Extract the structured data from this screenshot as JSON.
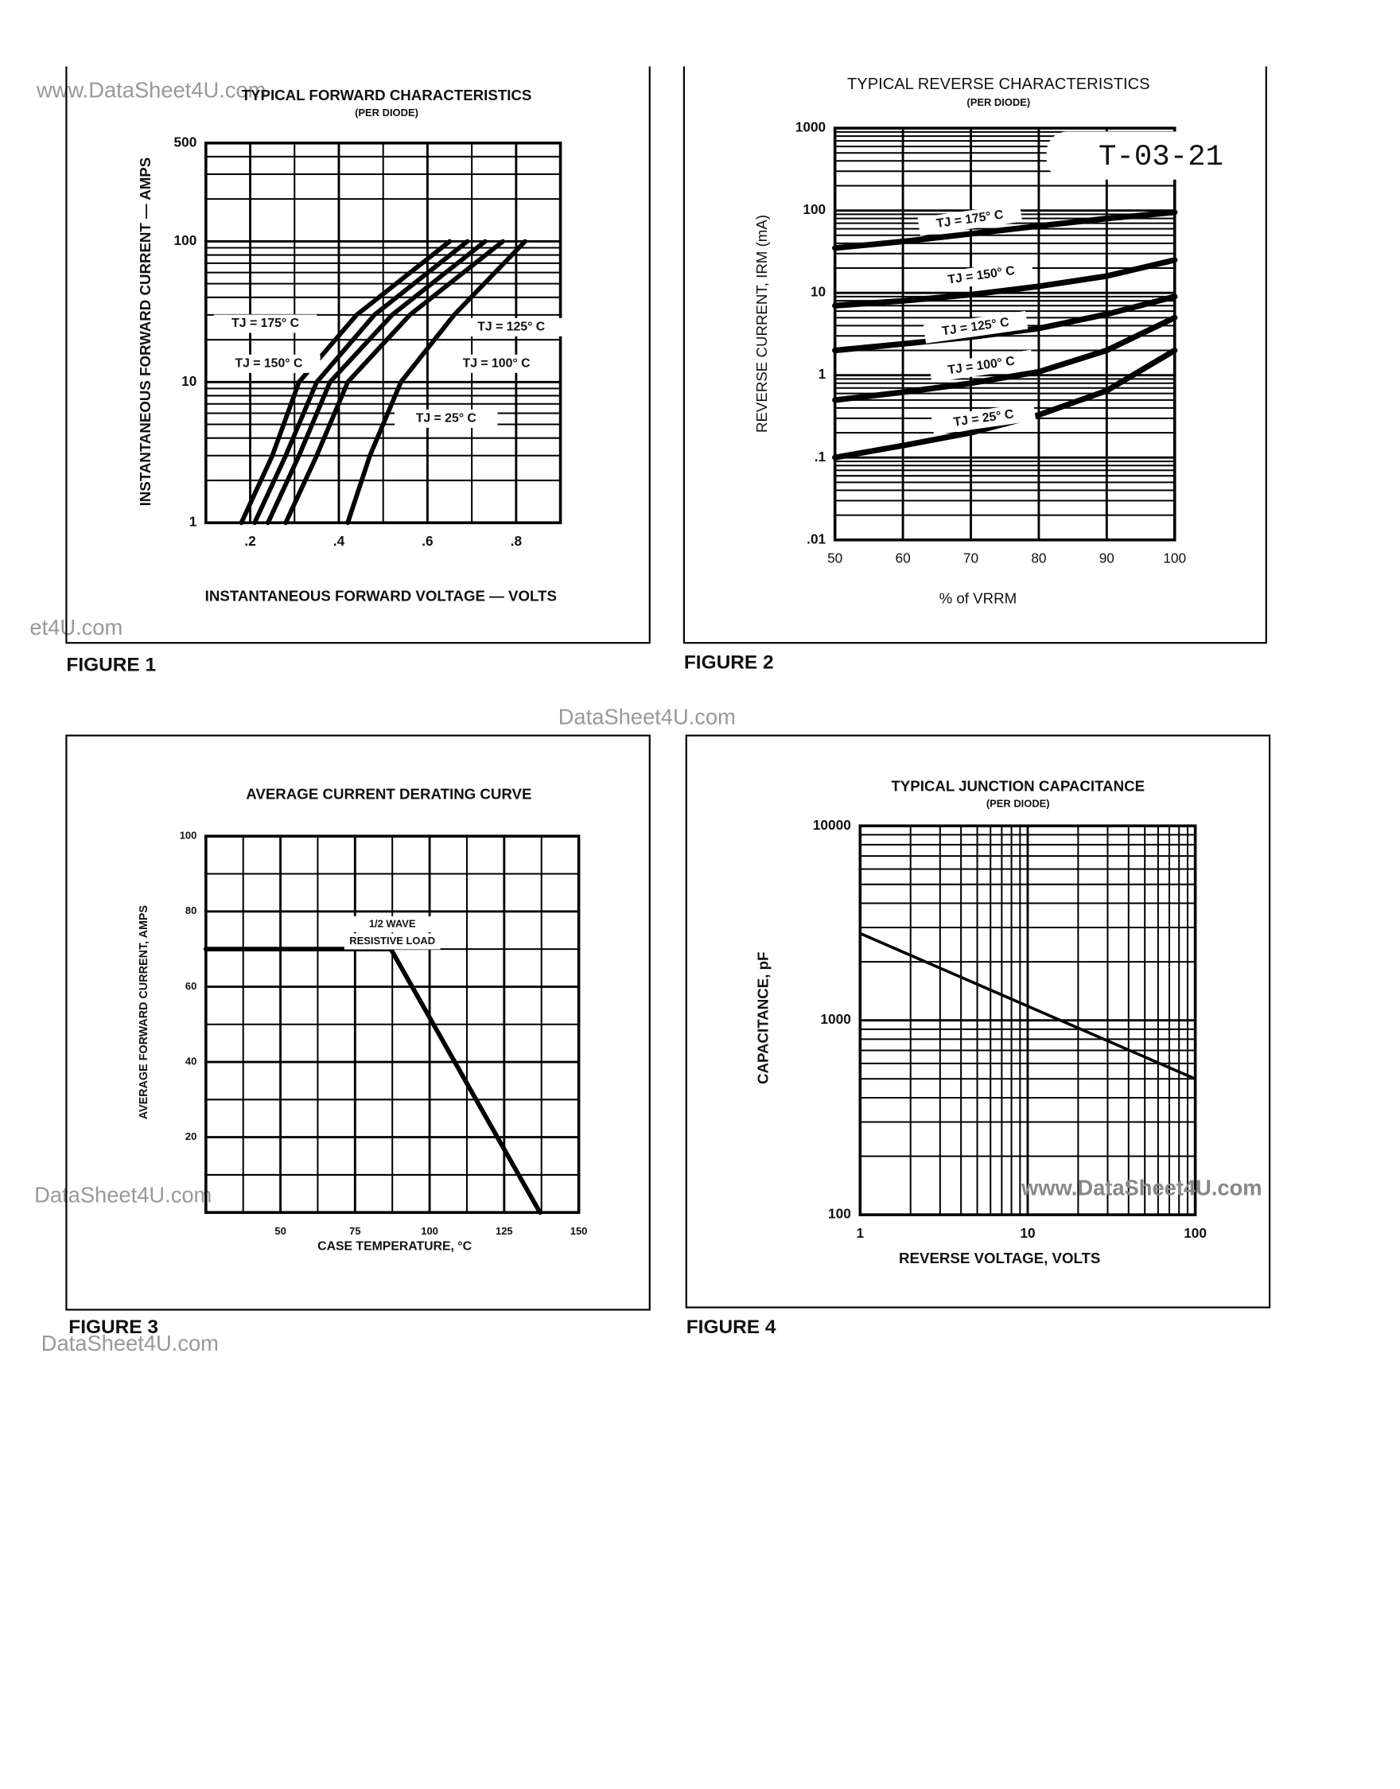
{
  "stamp": "T-03-21",
  "watermarks": [
    "www.DataSheet4U.com",
    "et4U.com",
    "DataSheet4U.com",
    "DataSheet4U.com",
    "DataSheet4U.com",
    "www.DataSheet4U.com"
  ],
  "chart_data": [
    {
      "type": "line",
      "title": "TYPICAL FORWARD CHARACTERISTICS",
      "subtitle": "(PER DIODE)",
      "x_label": "INSTANTANEOUS FORWARD VOLTAGE — VOLTS",
      "y_label": "INSTANTANEOUS FORWARD CURRENT — AMPS",
      "caption": "FIGURE 1",
      "ylog": true,
      "grid": true,
      "xlim": [
        0.1,
        0.9
      ],
      "xticks": [
        {
          "value": 0.2,
          "label": ".2"
        },
        {
          "value": 0.4,
          "label": ".4"
        },
        {
          "value": 0.6,
          "label": ".6"
        },
        {
          "value": 0.8,
          "label": ".8"
        }
      ],
      "ylim": [
        1,
        500
      ],
      "yticks": [
        1,
        10,
        100,
        500
      ],
      "series": [
        {
          "name": "TJ = 175° C",
          "color": "#000",
          "x": [
            0.18,
            0.25,
            0.31,
            0.44,
            0.65
          ],
          "values": [
            1,
            3,
            10,
            30,
            100
          ]
        },
        {
          "name": "TJ = 150° C",
          "color": "#000",
          "x": [
            0.21,
            0.28,
            0.35,
            0.48,
            0.69
          ],
          "values": [
            1,
            3,
            10,
            30,
            100
          ]
        },
        {
          "name": "TJ = 125° C",
          "color": "#000",
          "x": [
            0.24,
            0.31,
            0.38,
            0.52,
            0.73
          ],
          "values": [
            1,
            3,
            10,
            30,
            100
          ]
        },
        {
          "name": "TJ = 100° C",
          "color": "#000",
          "x": [
            0.28,
            0.35,
            0.42,
            0.56,
            0.77
          ],
          "values": [
            1,
            3,
            10,
            30,
            100
          ]
        },
        {
          "name": "TJ = 25° C",
          "color": "#000",
          "x": [
            0.42,
            0.47,
            0.54,
            0.66,
            0.82
          ],
          "values": [
            1,
            3,
            10,
            30,
            100
          ]
        }
      ]
    },
    {
      "type": "line",
      "title": "TYPICAL REVERSE CHARACTERISTICS",
      "subtitle": "(PER DIODE)",
      "x_label": "% of VRRM",
      "y_label": "REVERSE CURRENT, IRM (mA)",
      "caption": "FIGURE 2",
      "ylog": true,
      "grid": true,
      "xlim": [
        50,
        100
      ],
      "xticks": [
        50,
        60,
        70,
        80,
        90,
        100
      ],
      "ylim": [
        0.01,
        1000
      ],
      "yticks": [
        {
          "value": 0.01,
          "label": ".01"
        },
        {
          "value": 0.1,
          "label": ".1"
        },
        1,
        10,
        100,
        1000
      ],
      "x": [
        50,
        60,
        70,
        80,
        90,
        100
      ],
      "series": [
        {
          "name": "TJ = 175° C",
          "color": "#000",
          "values": [
            35,
            42,
            52,
            65,
            80,
            95
          ]
        },
        {
          "name": "TJ = 150° C",
          "color": "#000",
          "values": [
            7,
            8,
            9.5,
            12,
            16,
            25
          ]
        },
        {
          "name": "TJ = 125° C",
          "color": "#000",
          "values": [
            2,
            2.4,
            2.9,
            3.7,
            5.5,
            9
          ]
        },
        {
          "name": "TJ = 100° C",
          "color": "#000",
          "values": [
            0.5,
            0.62,
            0.8,
            1.1,
            2,
            5
          ]
        },
        {
          "name": "TJ = 25° C",
          "color": "#000",
          "values": [
            0.1,
            0.14,
            0.2,
            0.33,
            0.65,
            2
          ]
        }
      ]
    },
    {
      "type": "line",
      "title": "AVERAGE CURRENT DERATING CURVE",
      "x_label": "CASE TEMPERATURE, °C",
      "y_label": "AVERAGE FORWARD CURRENT, AMPS",
      "caption": "FIGURE 3",
      "grid": true,
      "annotations": [
        "1/2 WAVE",
        "RESISTIVE LOAD"
      ],
      "xlim": [
        25,
        150
      ],
      "xticks": [
        50,
        75,
        100,
        125,
        150
      ],
      "ylim": [
        0,
        100
      ],
      "yticks": [
        20,
        40,
        60,
        80,
        100
      ],
      "x": [
        25,
        87,
        137
      ],
      "values": [
        70,
        70,
        0
      ],
      "color": "#000"
    },
    {
      "type": "line",
      "title": "TYPICAL JUNCTION CAPACITANCE",
      "subtitle": "(PER DIODE)",
      "x_label": "REVERSE VOLTAGE, VOLTS",
      "y_label": "CAPACITANCE, pF",
      "caption": "FIGURE 4",
      "xlog": true,
      "ylog": true,
      "grid": true,
      "xlim": [
        1,
        100
      ],
      "xticks": [
        1,
        10,
        100
      ],
      "ylim": [
        100,
        10000
      ],
      "yticks": [
        100,
        1000,
        10000
      ],
      "x": [
        1,
        100
      ],
      "values": [
        2800,
        500
      ],
      "color": "#000"
    }
  ]
}
